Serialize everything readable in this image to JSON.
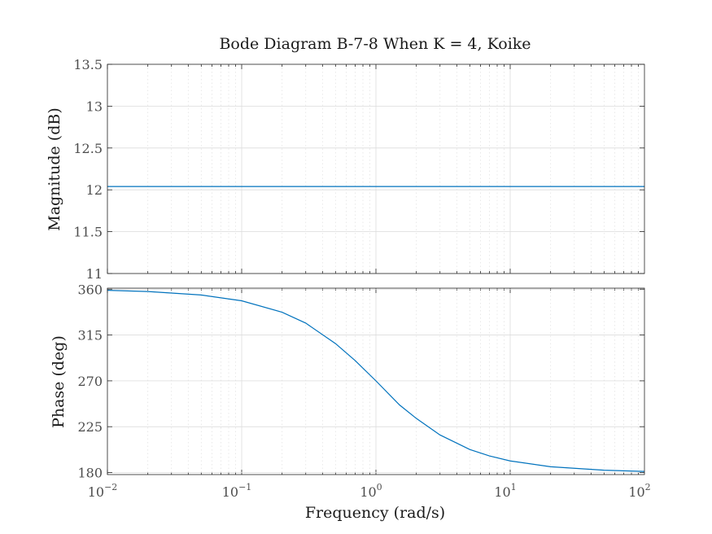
{
  "title": "Bode Diagram B-7-8 When K = 4, Koike",
  "chart_data": [
    {
      "type": "line",
      "panel": "magnitude",
      "ylabel": "Magnitude (dB)",
      "x_scale": "log",
      "xlim": [
        0.01,
        100
      ],
      "ylim": [
        11,
        13.5
      ],
      "yticks": [
        "11",
        "11.5",
        "12",
        "12.5",
        "13",
        "13.5"
      ],
      "grid": true,
      "line_color": "#0072BD",
      "series": [
        {
          "x": [
            0.01,
            100
          ],
          "y": [
            12.04,
            12.04
          ]
        }
      ]
    },
    {
      "type": "line",
      "panel": "phase",
      "ylabel": "Phase (deg)",
      "xlabel": "Frequency (rad/s)",
      "x_scale": "log",
      "xlim": [
        0.01,
        100
      ],
      "ylim": [
        178,
        361
      ],
      "yticks": [
        "180",
        "225",
        "270",
        "315",
        "360"
      ],
      "xticks": [
        {
          "base": "10",
          "exp": "−2"
        },
        {
          "base": "10",
          "exp": "−1"
        },
        {
          "base": "10",
          "exp": "0"
        },
        {
          "base": "10",
          "exp": "1"
        },
        {
          "base": "10",
          "exp": "2"
        }
      ],
      "grid": true,
      "line_color": "#0072BD",
      "series": [
        {
          "x": [
            0.01,
            0.02,
            0.05,
            0.1,
            0.2,
            0.3,
            0.5,
            0.7,
            1,
            1.5,
            2,
            3,
            5,
            7,
            10,
            20,
            50,
            100
          ],
          "y": [
            358.9,
            357.7,
            354.3,
            348.6,
            337.4,
            326.7,
            306.6,
            289.9,
            270,
            246.3,
            233.1,
            216.9,
            202.6,
            196.3,
            191.4,
            185.7,
            182.3,
            181.1
          ]
        }
      ]
    }
  ]
}
